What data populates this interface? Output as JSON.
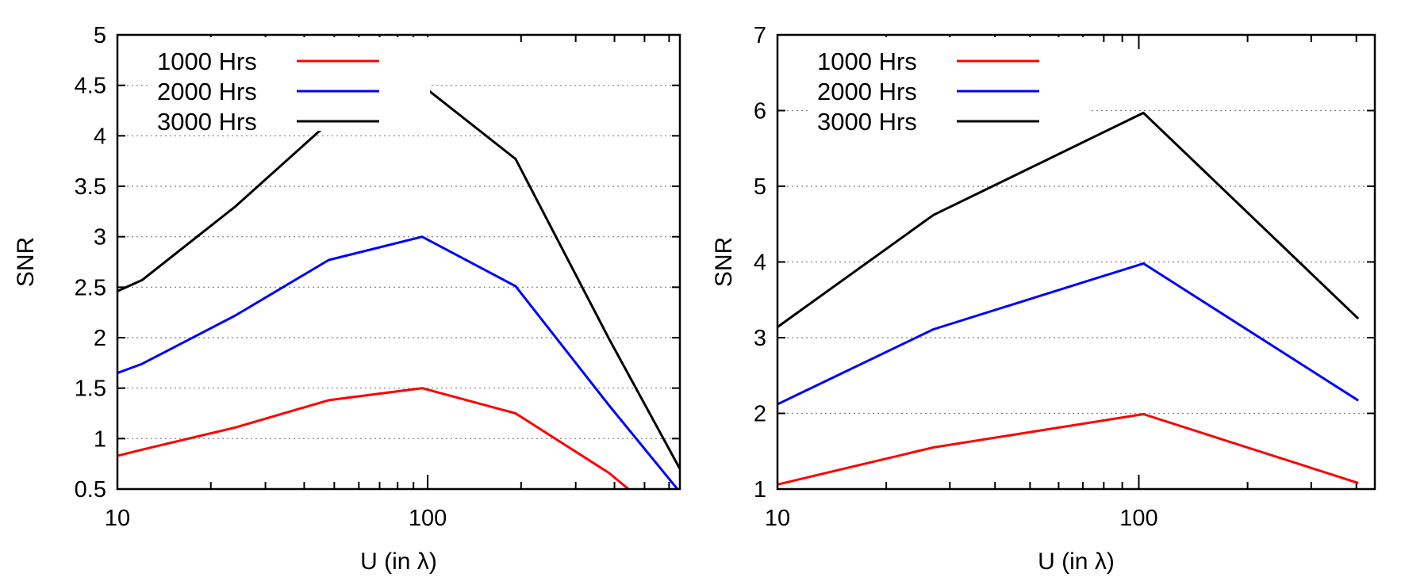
{
  "chart_data": [
    {
      "type": "line",
      "xlabel": "U (in λ)",
      "ylabel": "SNR",
      "xscale": "log",
      "xlim": [
        10,
        650
      ],
      "ylim": [
        0.5,
        5
      ],
      "xticks": [
        10,
        100
      ],
      "yticks": [
        0.5,
        1,
        1.5,
        2,
        2.5,
        3,
        3.5,
        4,
        4.5,
        5
      ],
      "ytick_labels": [
        "0.5",
        "1",
        "1.5",
        "2",
        "2.5",
        "3",
        "3.5",
        "4",
        "4.5",
        "5"
      ],
      "grid": "horizontal-dotted",
      "legend_position": "top-left",
      "series": [
        {
          "name": "1000 Hrs",
          "color": "#ff0000",
          "x": [
            10,
            12,
            24,
            48,
            96,
            192,
            384,
            460
          ],
          "y": [
            0.83,
            0.89,
            1.11,
            1.38,
            1.5,
            1.25,
            0.66,
            0.46
          ]
        },
        {
          "name": "2000 Hrs",
          "color": "#0000ff",
          "x": [
            10,
            12,
            24,
            48,
            96,
            192,
            384,
            650
          ],
          "y": [
            1.65,
            1.74,
            2.22,
            2.77,
            3.0,
            2.51,
            1.33,
            0.47
          ]
        },
        {
          "name": "3000 Hrs",
          "color": "#000000",
          "x": [
            10,
            12,
            24,
            48,
            96,
            192,
            384,
            650
          ],
          "y": [
            2.46,
            2.57,
            3.3,
            4.13,
            4.5,
            3.77,
            1.99,
            0.7
          ]
        }
      ]
    },
    {
      "type": "line",
      "xlabel": "U (in λ)",
      "ylabel": "SNR",
      "xscale": "log",
      "xlim": [
        10,
        450
      ],
      "ylim": [
        1,
        7
      ],
      "xticks": [
        10,
        100
      ],
      "yticks": [
        1,
        2,
        3,
        4,
        5,
        6,
        7
      ],
      "ytick_labels": [
        "1",
        "2",
        "3",
        "4",
        "5",
        "6",
        "7"
      ],
      "grid": "horizontal-dotted",
      "legend_position": "top-left",
      "series": [
        {
          "name": "1000 Hrs",
          "color": "#ff0000",
          "x": [
            10,
            27,
            103,
            405
          ],
          "y": [
            1.06,
            1.55,
            1.99,
            1.08
          ]
        },
        {
          "name": "2000 Hrs",
          "color": "#0000ff",
          "x": [
            10,
            27,
            103,
            405
          ],
          "y": [
            2.12,
            3.11,
            3.98,
            2.17
          ]
        },
        {
          "name": "3000 Hrs",
          "color": "#000000",
          "x": [
            10,
            27,
            103,
            405
          ],
          "y": [
            3.14,
            4.62,
            5.97,
            3.25
          ]
        }
      ]
    }
  ]
}
